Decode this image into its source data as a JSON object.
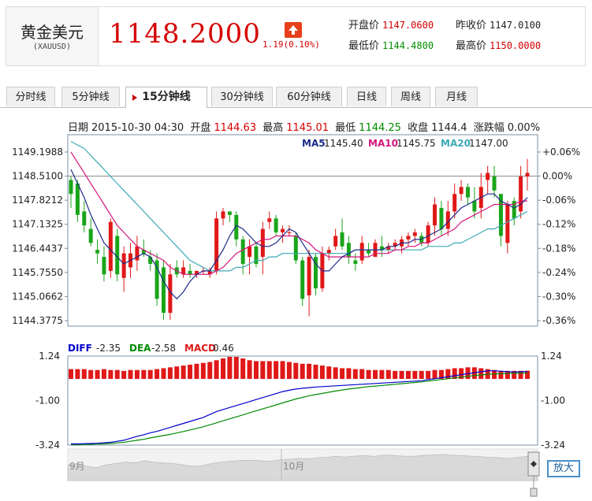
{
  "header": {
    "name": "黄金美元",
    "code": "(XAUUSD)",
    "price": "1148.2000",
    "change": "1.19(0.10%)",
    "open_label": "开盘价",
    "open": "1147.0600",
    "prev_close_label": "昨收价",
    "prev_close": "1147.0100",
    "low_label": "最低价",
    "low": "1144.4800",
    "high_label": "最高价",
    "high": "1150.0000"
  },
  "tabs": [
    "分时线",
    "5分钟线",
    "15分钟线",
    "30分钟线",
    "60分钟线",
    "日线",
    "周线",
    "月线"
  ],
  "active_tab": 2,
  "info_strip": {
    "date_label": "日期",
    "date": "2015-10-30 04:30",
    "open_label": "开盘",
    "open": "1144.63",
    "high_label": "最高",
    "high": "1145.01",
    "low_label": "最低",
    "low": "1144.25",
    "close_label": "收盘",
    "close": "1144.4",
    "chg_label": "涨跌幅",
    "chg": "0.00%"
  },
  "zoom_label": "放大",
  "colors": {
    "up": "#e01818",
    "down": "#1aa51a",
    "ma5": "#1b2a8a",
    "ma10": "#d4157a",
    "ma20": "#3aaab4",
    "diff": "#0000cc",
    "dea": "#008a00",
    "macd": "#e01818"
  },
  "chart_data": [
    {
      "type": "candlestick",
      "ma": [
        {
          "name": "MA5",
          "value": "1145.40",
          "color": "#1b2a8a"
        },
        {
          "name": "MA10",
          "value": "1145.75",
          "color": "#d4157a"
        },
        {
          "name": "MA20",
          "value": "1147.00",
          "color": "#3aaab4"
        }
      ],
      "y_ticks_left": [
        "1149.1988",
        "1148.5100",
        "1147.8212",
        "1147.1325",
        "1146.4437",
        "1145.7550",
        "1145.0662",
        "1144.3775"
      ],
      "y_ticks_right": [
        "+0.06%",
        "0.00%",
        "-0.06%",
        "-0.12%",
        "-0.18%",
        "-0.24%",
        "-0.30%",
        "-0.36%"
      ],
      "ylim": [
        1144.3775,
        1149.1988
      ],
      "reference": 1148.51,
      "candles": [
        [
          1148.4,
          1148.5,
          1147.6,
          1148.0
        ],
        [
          1148.3,
          1148.4,
          1147.2,
          1147.4
        ],
        [
          1147.5,
          1147.8,
          1146.9,
          1147.1
        ],
        [
          1147.0,
          1147.3,
          1146.5,
          1146.6
        ],
        [
          1146.4,
          1146.7,
          1146.0,
          1146.3
        ],
        [
          1146.2,
          1146.5,
          1145.5,
          1145.7
        ],
        [
          1145.8,
          1147.3,
          1145.6,
          1147.2
        ],
        [
          1146.8,
          1147.0,
          1145.5,
          1145.7
        ],
        [
          1145.6,
          1146.5,
          1145.2,
          1146.3
        ],
        [
          1145.9,
          1146.6,
          1145.6,
          1146.3
        ],
        [
          1146.1,
          1146.8,
          1145.8,
          1146.5
        ],
        [
          1146.4,
          1146.7,
          1146.2,
          1146.3
        ],
        [
          1146.2,
          1146.4,
          1145.8,
          1146.0
        ],
        [
          1146.1,
          1146.3,
          1144.8,
          1145.0
        ],
        [
          1145.9,
          1146.1,
          1144.4,
          1144.6
        ],
        [
          1144.6,
          1146.0,
          1144.4,
          1145.7
        ],
        [
          1145.9,
          1146.1,
          1145.6,
          1145.7
        ],
        [
          1145.7,
          1146.1,
          1145.6,
          1145.9
        ],
        [
          1145.8,
          1146.0,
          1145.6,
          1145.7
        ],
        [
          1145.7,
          1145.8,
          1145.6,
          1145.8
        ],
        [
          1145.8,
          1145.9,
          1145.7,
          1145.8
        ],
        [
          1145.7,
          1145.9,
          1145.6,
          1145.8
        ],
        [
          1145.8,
          1147.5,
          1145.7,
          1147.3
        ],
        [
          1147.3,
          1147.6,
          1147.1,
          1147.5
        ],
        [
          1147.5,
          1147.5,
          1147.2,
          1147.4
        ],
        [
          1147.4,
          1147.5,
          1146.5,
          1146.7
        ],
        [
          1146.7,
          1146.8,
          1145.7,
          1146.0
        ],
        [
          1146.2,
          1146.7,
          1145.7,
          1146.5
        ],
        [
          1146.5,
          1146.6,
          1145.9,
          1146.0
        ],
        [
          1146.2,
          1147.2,
          1145.7,
          1147.0
        ],
        [
          1147.2,
          1147.5,
          1147.0,
          1147.3
        ],
        [
          1147.3,
          1147.4,
          1146.8,
          1146.9
        ],
        [
          1146.9,
          1147.1,
          1146.6,
          1147.0
        ],
        [
          1146.9,
          1147.1,
          1146.8,
          1146.9
        ],
        [
          1146.8,
          1146.9,
          1146.0,
          1146.1
        ],
        [
          1146.1,
          1146.2,
          1144.8,
          1145.0
        ],
        [
          1145.1,
          1146.4,
          1144.5,
          1146.2
        ],
        [
          1146.2,
          1146.3,
          1145.1,
          1145.3
        ],
        [
          1145.3,
          1146.5,
          1145.2,
          1146.3
        ],
        [
          1146.3,
          1146.5,
          1146.1,
          1146.4
        ],
        [
          1146.5,
          1147.0,
          1146.4,
          1146.8
        ],
        [
          1146.9,
          1147.3,
          1146.4,
          1146.5
        ],
        [
          1146.6,
          1146.8,
          1146.0,
          1146.2
        ],
        [
          1146.1,
          1146.3,
          1145.8,
          1146.0
        ],
        [
          1146.1,
          1146.8,
          1146.0,
          1146.6
        ],
        [
          1146.4,
          1146.6,
          1146.2,
          1146.3
        ],
        [
          1146.2,
          1146.7,
          1146.2,
          1146.6
        ],
        [
          1146.5,
          1146.8,
          1146.2,
          1146.4
        ],
        [
          1146.4,
          1146.6,
          1146.3,
          1146.5
        ],
        [
          1146.5,
          1146.7,
          1146.4,
          1146.6
        ],
        [
          1146.5,
          1146.8,
          1146.3,
          1146.7
        ],
        [
          1146.7,
          1146.9,
          1146.5,
          1146.8
        ],
        [
          1146.8,
          1147.0,
          1146.6,
          1146.9
        ],
        [
          1146.8,
          1146.9,
          1146.5,
          1146.6
        ],
        [
          1146.6,
          1147.2,
          1146.5,
          1147.1
        ],
        [
          1147.1,
          1147.9,
          1146.8,
          1147.7
        ],
        [
          1147.6,
          1147.8,
          1146.8,
          1147.0
        ],
        [
          1147.0,
          1147.8,
          1146.8,
          1147.5
        ],
        [
          1147.5,
          1148.3,
          1147.3,
          1148.0
        ],
        [
          1148.0,
          1148.4,
          1147.8,
          1148.2
        ],
        [
          1148.2,
          1148.3,
          1147.7,
          1147.9
        ],
        [
          1147.8,
          1148.2,
          1147.3,
          1147.5
        ],
        [
          1147.6,
          1148.6,
          1147.3,
          1148.2
        ],
        [
          1148.4,
          1148.8,
          1148.0,
          1148.6
        ],
        [
          1148.5,
          1148.8,
          1147.9,
          1148.1
        ],
        [
          1148.0,
          1148.0,
          1146.5,
          1146.8
        ],
        [
          1146.6,
          1147.8,
          1146.3,
          1147.7
        ],
        [
          1147.8,
          1147.9,
          1147.1,
          1147.3
        ],
        [
          1147.5,
          1148.8,
          1147.3,
          1148.5
        ],
        [
          1148.5,
          1149.0,
          1148.1,
          1148.6
        ]
      ],
      "ma5_values": [
        1148.7,
        1148.3,
        1147.9,
        1147.4,
        1147.0,
        1146.6,
        1146.4,
        1146.2,
        1146.0,
        1146.1,
        1146.2,
        1146.3,
        1146.2,
        1145.9,
        1145.5,
        1145.2,
        1145.0,
        1145.2,
        1145.5,
        1145.7,
        1145.8,
        1145.8,
        1146.1,
        1146.4,
        1146.8,
        1147.1,
        1147.0,
        1146.8,
        1146.6,
        1146.5,
        1146.5,
        1146.6,
        1146.8,
        1147.0,
        1146.9,
        1146.6,
        1146.3,
        1146.0,
        1145.8,
        1145.8,
        1146.0,
        1146.2,
        1146.3,
        1146.4,
        1146.4,
        1146.4,
        1146.4,
        1146.4,
        1146.5,
        1146.5,
        1146.6,
        1146.6,
        1146.7,
        1146.7,
        1146.8,
        1146.9,
        1147.0,
        1147.2,
        1147.4,
        1147.6,
        1147.7,
        1147.8,
        1147.9,
        1148.0,
        1148.0,
        1147.8,
        1147.7,
        1147.6,
        1147.7,
        1147.9
      ],
      "ma10_values": [
        1149.2,
        1148.9,
        1148.6,
        1148.3,
        1148.0,
        1147.7,
        1147.4,
        1147.1,
        1146.9,
        1146.7,
        1146.5,
        1146.4,
        1146.3,
        1146.2,
        1146.1,
        1145.9,
        1145.8,
        1145.7,
        1145.7,
        1145.7,
        1145.7,
        1145.7,
        1145.8,
        1145.9,
        1146.1,
        1146.3,
        1146.4,
        1146.5,
        1146.6,
        1146.7,
        1146.7,
        1146.8,
        1146.8,
        1146.8,
        1146.8,
        1146.7,
        1146.6,
        1146.4,
        1146.3,
        1146.2,
        1146.2,
        1146.2,
        1146.2,
        1146.2,
        1146.2,
        1146.2,
        1146.3,
        1146.3,
        1146.3,
        1146.4,
        1146.4,
        1146.5,
        1146.5,
        1146.6,
        1146.6,
        1146.7,
        1146.8,
        1146.9,
        1147.0,
        1147.2,
        1147.3,
        1147.4,
        1147.5,
        1147.6,
        1147.7,
        1147.7,
        1147.7,
        1147.7,
        1147.8,
        1147.8
      ],
      "ma20_values": [
        1149.5,
        1149.4,
        1149.3,
        1149.1,
        1148.9,
        1148.7,
        1148.5,
        1148.3,
        1148.1,
        1147.9,
        1147.7,
        1147.5,
        1147.3,
        1147.1,
        1146.9,
        1146.7,
        1146.5,
        1146.3,
        1146.1,
        1146.0,
        1145.9,
        1145.8,
        1145.8,
        1145.8,
        1145.8,
        1145.9,
        1145.9,
        1146.0,
        1146.1,
        1146.1,
        1146.2,
        1146.2,
        1146.3,
        1146.3,
        1146.3,
        1146.3,
        1146.3,
        1146.3,
        1146.3,
        1146.3,
        1146.3,
        1146.3,
        1146.3,
        1146.4,
        1146.4,
        1146.4,
        1146.4,
        1146.4,
        1146.4,
        1146.4,
        1146.4,
        1146.4,
        1146.4,
        1146.4,
        1146.5,
        1146.5,
        1146.5,
        1146.5,
        1146.6,
        1146.6,
        1146.7,
        1146.8,
        1146.9,
        1147.0,
        1147.0,
        1147.1,
        1147.2,
        1147.3,
        1147.4,
        1147.5
      ]
    },
    {
      "type": "bar",
      "indicator": "MACD",
      "legend": [
        {
          "name": "DIFF",
          "value": "-2.35",
          "color": "#0000cc"
        },
        {
          "name": "DEA",
          "value": "-2.58",
          "color": "#008a00"
        },
        {
          "name": "MACD",
          "value": "0.46",
          "color": "#e01818"
        }
      ],
      "y_ticks": [
        "1.24",
        "-1.00",
        "-3.24"
      ],
      "ylim": [
        -3.24,
        1.24
      ],
      "macd": [
        0.55,
        0.55,
        0.55,
        0.5,
        0.5,
        0.55,
        0.5,
        0.5,
        0.45,
        0.5,
        0.5,
        0.5,
        0.5,
        0.55,
        0.6,
        0.65,
        0.7,
        0.75,
        0.8,
        0.85,
        0.9,
        0.95,
        1.05,
        1.15,
        1.24,
        1.24,
        1.15,
        1.05,
        1.0,
        1.0,
        1.0,
        1.0,
        1.0,
        0.95,
        0.9,
        0.85,
        0.85,
        0.8,
        0.75,
        0.7,
        0.65,
        0.6,
        0.6,
        0.55,
        0.55,
        0.5,
        0.5,
        0.5,
        0.5,
        0.45,
        0.45,
        0.45,
        0.45,
        0.45,
        0.45,
        0.5,
        0.5,
        0.55,
        0.6,
        0.6,
        0.65,
        0.65,
        0.6,
        0.55,
        0.5,
        0.45,
        0.45,
        0.45,
        0.45,
        0.46
      ],
      "diff": [
        -3.18,
        -3.18,
        -3.17,
        -3.16,
        -3.15,
        -3.12,
        -3.1,
        -3.05,
        -3.0,
        -2.9,
        -2.8,
        -2.72,
        -2.62,
        -2.55,
        -2.45,
        -2.35,
        -2.25,
        -2.15,
        -2.05,
        -1.95,
        -1.85,
        -1.7,
        -1.55,
        -1.45,
        -1.35,
        -1.25,
        -1.15,
        -1.05,
        -0.95,
        -0.85,
        -0.75,
        -0.65,
        -0.55,
        -0.48,
        -0.42,
        -0.38,
        -0.35,
        -0.32,
        -0.3,
        -0.28,
        -0.26,
        -0.24,
        -0.22,
        -0.2,
        -0.18,
        -0.16,
        -0.14,
        -0.12,
        -0.1,
        -0.08,
        -0.06,
        -0.04,
        -0.02,
        0.0,
        0.05,
        0.1,
        0.15,
        0.2,
        0.25,
        0.3,
        0.35,
        0.4,
        0.45,
        0.5,
        0.5,
        0.48,
        0.45,
        0.44,
        0.45,
        0.46
      ],
      "dea": [
        -3.22,
        -3.22,
        -3.21,
        -3.2,
        -3.19,
        -3.18,
        -3.16,
        -3.13,
        -3.1,
        -3.05,
        -3.0,
        -2.95,
        -2.88,
        -2.82,
        -2.76,
        -2.7,
        -2.63,
        -2.56,
        -2.48,
        -2.4,
        -2.32,
        -2.22,
        -2.12,
        -2.02,
        -1.92,
        -1.82,
        -1.72,
        -1.62,
        -1.52,
        -1.42,
        -1.32,
        -1.22,
        -1.12,
        -1.02,
        -0.92,
        -0.84,
        -0.76,
        -0.7,
        -0.64,
        -0.58,
        -0.52,
        -0.47,
        -0.42,
        -0.38,
        -0.34,
        -0.3,
        -0.27,
        -0.24,
        -0.21,
        -0.18,
        -0.15,
        -0.12,
        -0.09,
        -0.06,
        -0.02,
        0.02,
        0.06,
        0.1,
        0.14,
        0.18,
        0.22,
        0.26,
        0.29,
        0.32,
        0.34,
        0.35,
        0.36,
        0.37,
        0.38,
        0.38
      ]
    }
  ],
  "navigator": {
    "labels": [
      "9月",
      "10月"
    ],
    "series": [
      0.55,
      0.6,
      0.5,
      0.45,
      0.55,
      0.6,
      0.65,
      0.62,
      0.7,
      0.65,
      0.62,
      0.6,
      0.55,
      0.5,
      0.52,
      0.6,
      0.65,
      0.68,
      0.7,
      0.72,
      0.7,
      0.68,
      0.72,
      0.75,
      0.78,
      0.76,
      0.8,
      0.82,
      0.85,
      0.83,
      0.86,
      0.88,
      0.85,
      0.9,
      0.88,
      0.86,
      0.85,
      0.88,
      0.9,
      0.92,
      0.9,
      0.88,
      0.86,
      0.84,
      0.82,
      0.8,
      0.78,
      0.82,
      0.85,
      0.88
    ]
  }
}
